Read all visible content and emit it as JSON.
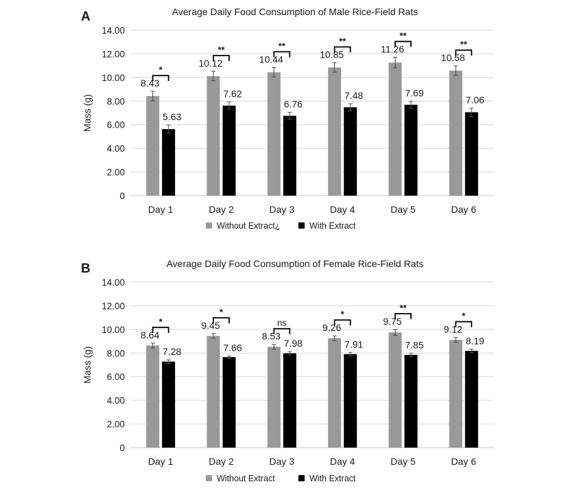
{
  "chart_data": [
    {
      "panel": "A",
      "type": "bar",
      "title": "Average Daily Food Consumption of Male Rice-Field Rats",
      "ylabel": "Mass (g)",
      "xlabel": "",
      "ylim": [
        0,
        14
      ],
      "yticks": [
        "0",
        "2.00",
        "4.00",
        "6.00",
        "8.00",
        "10.00",
        "12.00",
        "14.00"
      ],
      "categories": [
        "Day 1",
        "Day 2",
        "Day 3",
        "Day 4",
        "Day 5",
        "Day 6"
      ],
      "grid": true,
      "legend_position": "bottom",
      "series": [
        {
          "name": "Without Extract¿",
          "color": "#999999",
          "values": [
            8.43,
            10.12,
            10.44,
            10.85,
            11.26,
            10.58
          ],
          "labels": [
            "8.43",
            "10.12",
            "10.44",
            "10.85",
            "11.26",
            "10.58"
          ],
          "errors": [
            0.4,
            0.4,
            0.4,
            0.4,
            0.45,
            0.4
          ]
        },
        {
          "name": "With Extract",
          "color": "#000000",
          "values": [
            5.63,
            7.62,
            6.76,
            7.48,
            7.69,
            7.06
          ],
          "labels": [
            "5.63",
            "7.62",
            "6.76",
            "7.48",
            "7.69",
            "7.06"
          ],
          "errors": [
            0.35,
            0.3,
            0.3,
            0.3,
            0.3,
            0.35
          ]
        }
      ],
      "significance": [
        "*",
        "**",
        "**",
        "**",
        "**",
        "**"
      ]
    },
    {
      "panel": "B",
      "type": "bar",
      "title": "Average Daily Food Consumption of Female Rice-Field Rats",
      "ylabel": "Mass (g)",
      "xlabel": "",
      "ylim": [
        0,
        14
      ],
      "yticks": [
        "0",
        "2.00",
        "4.00",
        "6.00",
        "8.00",
        "10.00",
        "12.00",
        "14.00"
      ],
      "categories": [
        "Day 1",
        "Day 2",
        "Day 3",
        "Day 4",
        "Day 5",
        "Day 6"
      ],
      "grid": true,
      "legend_position": "bottom",
      "series": [
        {
          "name": "Without Extract",
          "color": "#999999",
          "values": [
            8.64,
            9.45,
            8.53,
            9.26,
            9.75,
            9.12
          ],
          "labels": [
            "8.64",
            "9.45",
            "8.53",
            "9.26",
            "9.75",
            "9.12"
          ],
          "errors": [
            0.2,
            0.2,
            0.2,
            0.2,
            0.25,
            0.2
          ]
        },
        {
          "name": "With Extract",
          "color": "#000000",
          "values": [
            7.28,
            7.66,
            7.98,
            7.91,
            7.85,
            8.19
          ],
          "labels": [
            "7.28",
            "7.66",
            "7.98",
            "7.91",
            "7.85",
            "8.19"
          ],
          "errors": [
            0.15,
            0.1,
            0.15,
            0.15,
            0.15,
            0.15
          ]
        }
      ],
      "significance": [
        "*",
        "*",
        "ns",
        "*",
        "**",
        "*"
      ]
    }
  ]
}
